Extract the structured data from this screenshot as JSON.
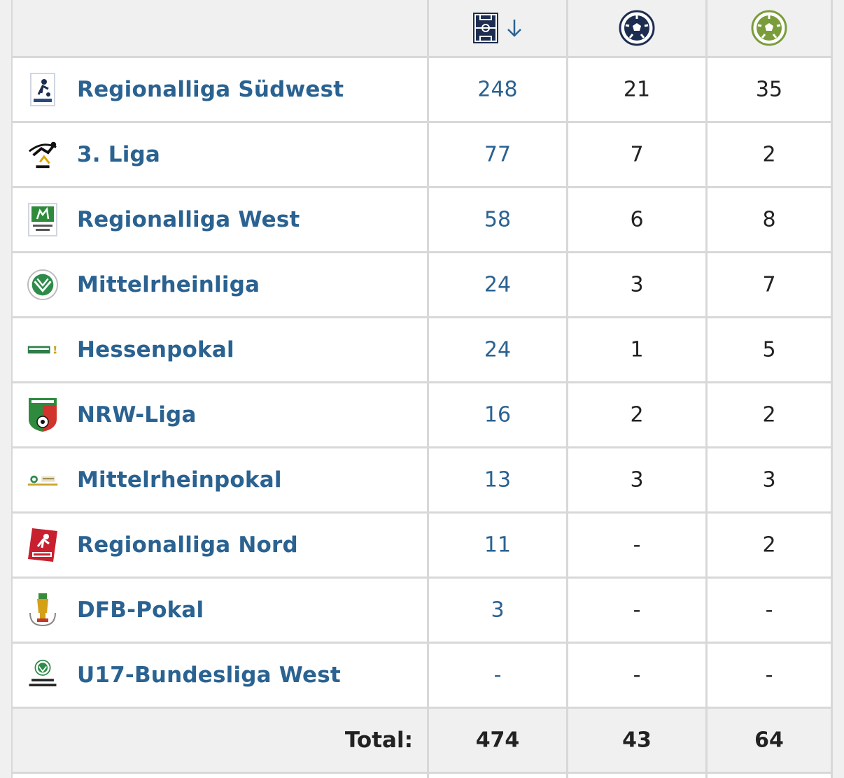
{
  "header": {
    "icons": [
      "pitch-icon",
      "sort-down-arrow-icon",
      "goals-ball-icon",
      "assists-ball-icon"
    ],
    "colors": {
      "navy": "#1d2d50",
      "green": "#7a9c3a"
    }
  },
  "rows": [
    {
      "name": "Regionalliga Südwest",
      "apps": "248",
      "goals": "21",
      "assists": "35",
      "logo": "regionalliga-suedwest-logo"
    },
    {
      "name": "3. Liga",
      "apps": "77",
      "goals": "7",
      "assists": "2",
      "logo": "3-liga-logo"
    },
    {
      "name": "Regionalliga West",
      "apps": "58",
      "goals": "6",
      "assists": "8",
      "logo": "regionalliga-west-logo"
    },
    {
      "name": "Mittelrheinliga",
      "apps": "24",
      "goals": "3",
      "assists": "7",
      "logo": "mittelrheinliga-logo"
    },
    {
      "name": "Hessenpokal",
      "apps": "24",
      "goals": "1",
      "assists": "5",
      "logo": "hessenpokal-logo"
    },
    {
      "name": "NRW-Liga",
      "apps": "16",
      "goals": "2",
      "assists": "2",
      "logo": "nrw-liga-logo"
    },
    {
      "name": "Mittelrheinpokal",
      "apps": "13",
      "goals": "3",
      "assists": "3",
      "logo": "mittelrheinpokal-logo"
    },
    {
      "name": "Regionalliga Nord",
      "apps": "11",
      "goals": "-",
      "assists": "2",
      "logo": "regionalliga-nord-logo"
    },
    {
      "name": "DFB-Pokal",
      "apps": "3",
      "goals": "-",
      "assists": "-",
      "logo": "dfb-pokal-logo"
    },
    {
      "name": "U17-Bundesliga West",
      "apps": "-",
      "goals": "-",
      "assists": "-",
      "logo": "u17-bundesliga-logo"
    }
  ],
  "footer": {
    "label": "Total:",
    "apps": "474",
    "goals": "43",
    "assists": "64"
  }
}
